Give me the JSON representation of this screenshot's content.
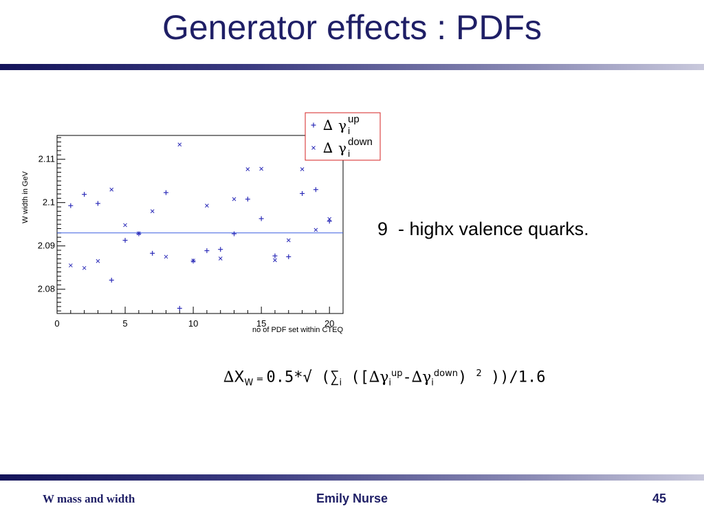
{
  "slide": {
    "title": "Generator effects : PDFs",
    "note": "9  - highx valence quarks.",
    "formula": {
      "delta": "∆",
      "x": "X",
      "w_sub": "W",
      "eq": " = ",
      "body1": "0.5*√ (∑",
      "i_sub": "i",
      "body2": " ([",
      "delta2": "∆γ",
      "i_sub2": "i",
      "up_sup": "up",
      "minus": "-",
      "delta3": "∆γ",
      "i_sub3": "i",
      "down_sup": "down",
      "close1": ") ",
      "two_sup": "2",
      "close2": " ))/1.6"
    }
  },
  "footer": {
    "left": "W mass and width",
    "center": "Emily Nurse",
    "right": "45"
  },
  "colors": {
    "title": "#1f1f66",
    "marker": "#2b2bb8",
    "reference_line": "#3a5ee0",
    "legend_border": "#d62020"
  },
  "chart_data": {
    "type": "scatter",
    "title": "",
    "xlabel": "no of PDF set within CTEQ",
    "ylabel": "W width in GeV",
    "xlim": [
      0,
      21
    ],
    "ylim": [
      2.0744,
      2.1155
    ],
    "xticks": [
      0,
      5,
      10,
      15,
      20
    ],
    "yticks": [
      2.08,
      2.09,
      2.1,
      2.11
    ],
    "ytick_labels": [
      "2.08",
      "2.09",
      "2.1",
      "2.11"
    ],
    "reference_line": 2.093,
    "legend_position": "top-right",
    "legend": [
      {
        "marker": "+",
        "delta": "∆",
        "gamma": "γ",
        "sub": "i",
        "sup": "up"
      },
      {
        "marker": "x",
        "delta": "∆",
        "gamma": "γ",
        "sub": "i",
        "sup": "down"
      }
    ],
    "series": [
      {
        "marker": "+",
        "x": [
          1,
          2,
          3,
          4,
          5,
          6,
          7,
          8,
          9,
          10,
          11,
          12,
          13,
          14,
          15,
          16,
          17,
          18,
          19,
          20
        ],
        "values": [
          2.0993,
          2.1019,
          2.0998,
          2.0821,
          2.0913,
          2.0928,
          2.0883,
          2.1023,
          2.0756,
          2.0865,
          2.0889,
          2.0892,
          2.0928,
          2.1008,
          2.0963,
          2.0877,
          2.0875,
          2.1021,
          2.103,
          2.0957
        ]
      },
      {
        "marker": "x",
        "x": [
          1,
          2,
          3,
          4,
          5,
          6,
          7,
          8,
          9,
          10,
          11,
          12,
          13,
          14,
          15,
          16,
          17,
          18,
          19,
          20
        ],
        "values": [
          2.0855,
          2.0849,
          2.0865,
          2.103,
          2.0948,
          2.0929,
          2.098,
          2.0875,
          2.1134,
          2.0866,
          2.0993,
          2.0871,
          2.1008,
          2.1077,
          2.1078,
          2.0867,
          2.0913,
          2.1077,
          2.0937,
          2.0962
        ]
      }
    ]
  }
}
